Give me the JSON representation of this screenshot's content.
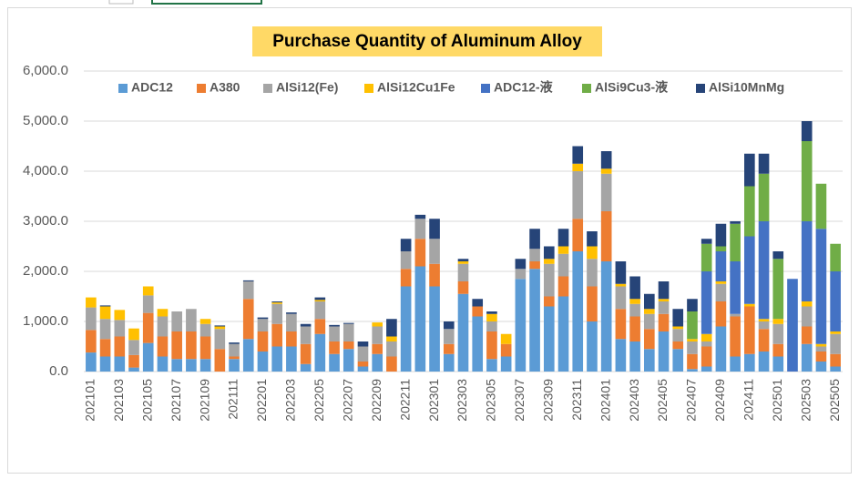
{
  "chart_data": {
    "type": "stacked_bar",
    "title": "Purchase Quantity of Aluminum Alloy",
    "categories": [
      "202101",
      null,
      "202103",
      null,
      "202105",
      null,
      "202107",
      null,
      "202109",
      null,
      "202111",
      null,
      "202201",
      null,
      "202203",
      null,
      "202205",
      null,
      "202207",
      null,
      "202209",
      null,
      "202211",
      null,
      "202301",
      null,
      "202303",
      null,
      "202305",
      null,
      "202307",
      null,
      "202309",
      null,
      "202311",
      null,
      "202401",
      null,
      "202403",
      null,
      "202405",
      null,
      "202407",
      null,
      "202409",
      null,
      "202411",
      null,
      "202501",
      null,
      "202503",
      null,
      "202505"
    ],
    "series": [
      {
        "name": "ADC12",
        "color": "#5b9bd5",
        "values": [
          380,
          300,
          300,
          80,
          570,
          300,
          250,
          250,
          250,
          0,
          250,
          650,
          400,
          500,
          500,
          150,
          750,
          350,
          450,
          100,
          350,
          0,
          1700,
          2100,
          1700,
          350,
          1550,
          1100,
          250,
          300,
          1850,
          2050,
          1300,
          1500,
          2400,
          1000,
          2200,
          650,
          600,
          450,
          800,
          450,
          50,
          100,
          900,
          300,
          350,
          400,
          300,
          0,
          550,
          200,
          100
        ]
      },
      {
        "name": "A380",
        "color": "#ed7d31",
        "values": [
          450,
          350,
          400,
          250,
          600,
          400,
          550,
          550,
          450,
          450,
          50,
          800,
          400,
          450,
          300,
          400,
          300,
          250,
          150,
          100,
          200,
          300,
          350,
          550,
          450,
          200,
          250,
          200,
          550,
          250,
          0,
          150,
          200,
          400,
          650,
          700,
          1000,
          600,
          500,
          400,
          350,
          150,
          300,
          400,
          500,
          800,
          950,
          450,
          250,
          0,
          350,
          200,
          250
        ]
      },
      {
        "name": "AlSi12(Fe)",
        "color": "#a5a5a5",
        "values": [
          450,
          400,
          330,
          300,
          350,
          400,
          400,
          450,
          250,
          400,
          250,
          350,
          250,
          400,
          350,
          350,
          350,
          300,
          350,
          300,
          350,
          300,
          350,
          400,
          500,
          300,
          350,
          0,
          200,
          0,
          200,
          250,
          650,
          450,
          950,
          550,
          750,
          450,
          250,
          300,
          250,
          250,
          250,
          100,
          350,
          50,
          0,
          150,
          400,
          0,
          400,
          100,
          400
        ]
      },
      {
        "name": "AlSi12Cu1Fe",
        "color": "#ffc000",
        "values": [
          200,
          250,
          200,
          230,
          180,
          150,
          0,
          0,
          100,
          50,
          0,
          0,
          0,
          30,
          0,
          0,
          30,
          0,
          0,
          0,
          80,
          100,
          0,
          0,
          0,
          0,
          50,
          0,
          150,
          200,
          0,
          0,
          100,
          150,
          150,
          250,
          100,
          50,
          100,
          100,
          50,
          50,
          50,
          150,
          50,
          0,
          50,
          50,
          100,
          0,
          100,
          50,
          50
        ]
      },
      {
        "name": "ADC12-液",
        "color": "#4472c4",
        "values": [
          0,
          0,
          0,
          0,
          0,
          0,
          0,
          0,
          0,
          0,
          0,
          0,
          0,
          0,
          0,
          0,
          0,
          0,
          0,
          0,
          0,
          0,
          0,
          0,
          0,
          0,
          0,
          0,
          0,
          0,
          0,
          0,
          0,
          0,
          0,
          0,
          0,
          0,
          0,
          0,
          0,
          0,
          0,
          1250,
          600,
          1050,
          1350,
          1950,
          0,
          1850,
          1600,
          2300,
          1200
        ]
      },
      {
        "name": "AlSi9Cu3-液",
        "color": "#70ad47",
        "values": [
          0,
          0,
          0,
          0,
          0,
          0,
          0,
          0,
          0,
          0,
          0,
          0,
          0,
          0,
          0,
          0,
          0,
          0,
          0,
          0,
          0,
          0,
          0,
          0,
          0,
          0,
          0,
          0,
          0,
          0,
          0,
          0,
          0,
          0,
          0,
          0,
          0,
          0,
          0,
          0,
          0,
          0,
          550,
          550,
          100,
          750,
          1000,
          950,
          1200,
          0,
          1600,
          900,
          550
        ]
      },
      {
        "name": "AlSi10MnMg",
        "color": "#264478",
        "values": [
          0,
          20,
          0,
          0,
          0,
          0,
          0,
          0,
          0,
          20,
          30,
          20,
          30,
          20,
          30,
          50,
          50,
          30,
          20,
          100,
          0,
          350,
          250,
          80,
          400,
          150,
          50,
          150,
          50,
          0,
          200,
          400,
          250,
          350,
          350,
          300,
          350,
          450,
          450,
          300,
          350,
          350,
          250,
          100,
          450,
          50,
          650,
          400,
          150,
          0,
          400,
          0,
          0
        ]
      }
    ],
    "ylim": [
      0,
      6000
    ],
    "yticks": [
      {
        "value": 0,
        "label": "0.0"
      },
      {
        "value": 1000,
        "label": "1,000.0"
      },
      {
        "value": 2000,
        "label": "2,000.0"
      },
      {
        "value": 3000,
        "label": "3,000.0"
      },
      {
        "value": 4000,
        "label": "4,000.0"
      },
      {
        "value": 5000,
        "label": "5,000.0"
      },
      {
        "value": 6000,
        "label": "6,000.0"
      }
    ],
    "grid": true,
    "legend": "top"
  }
}
